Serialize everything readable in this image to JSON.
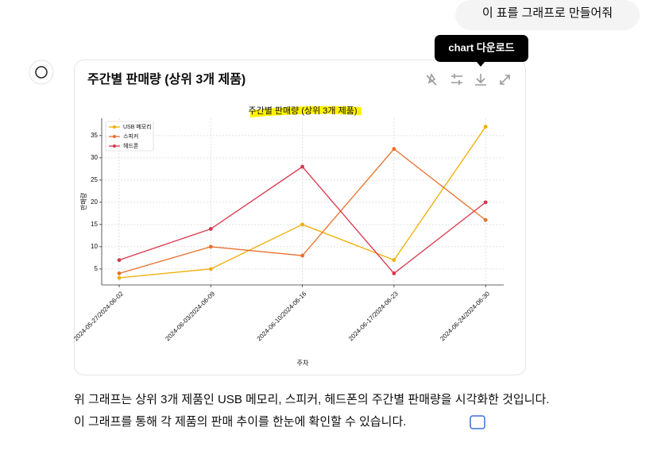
{
  "conversation": {
    "user_message": "이 표를 그래프로 만들어줘",
    "tooltip": "chart 다운로드",
    "card_title": "주간별 판매량 (상위 3개 제품)",
    "response_lines": [
      "위 그래프는 상위 3개 제품인 USB 메모리, 스피커, 헤드폰의 주간별 판매량을 시각화한 것입니다.",
      "이 그래프를 통해 각 제품의 판매 추이를 한눈에 확인할 수 있습니다."
    ]
  },
  "chart_data": {
    "type": "line",
    "title": "주간별 판매량 (상위 3개 제품)",
    "x_label": "주차",
    "y_label": "판매량",
    "categories": [
      "2024-05-27/2024-06-02",
      "2024-06-03/2024-06-09",
      "2024-06-10/2024-06-16",
      "2024-06-17/2024-06-23",
      "2024-06-24/2024-06-30"
    ],
    "series": [
      {
        "name": "USB 메모리",
        "color": "#f0ad00",
        "values": [
          3,
          5,
          15,
          7,
          37
        ]
      },
      {
        "name": "스피커",
        "color": "#e8702a",
        "values": [
          4,
          10,
          8,
          32,
          16
        ]
      },
      {
        "name": "헤드폰",
        "color": "#d9364c",
        "values": [
          7,
          14,
          28,
          4,
          20
        ]
      }
    ],
    "ylim": [
      1.4,
      38.9
    ],
    "yticks": [
      5,
      10,
      15,
      20,
      25,
      30,
      35
    ],
    "grid": true,
    "legend": "upper left"
  }
}
